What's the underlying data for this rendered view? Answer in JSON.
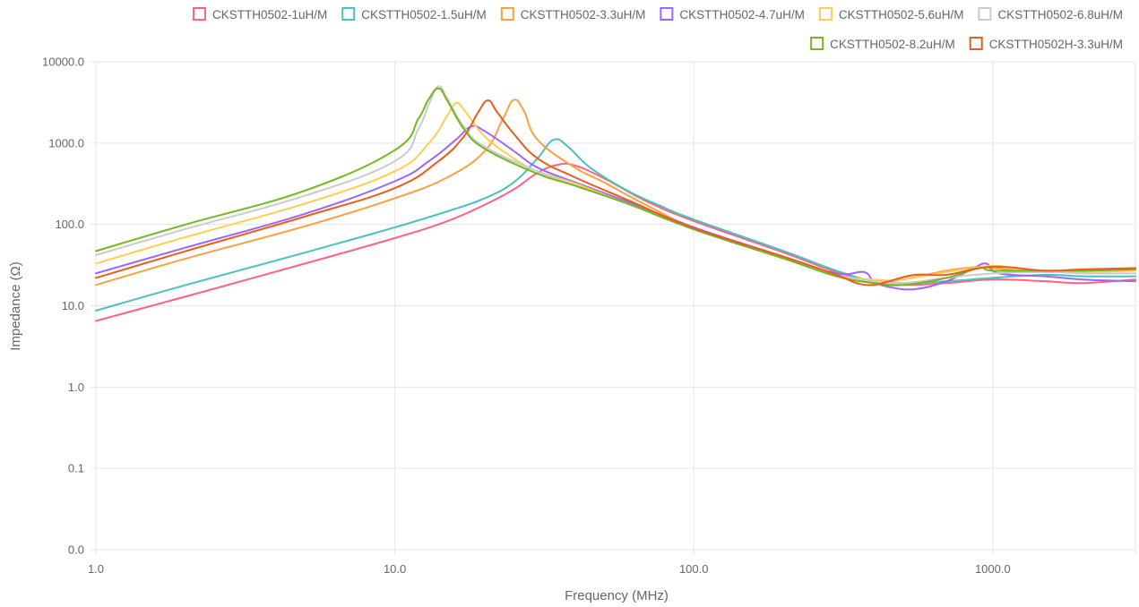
{
  "chart_data": {
    "type": "line",
    "xlabel": "Frequency (MHz)",
    "ylabel": "Impedance (Ω)",
    "xscale": "log",
    "yscale": "log",
    "xlim": [
      1,
      3000
    ],
    "ylim": [
      0.01,
      10000
    ],
    "x_ticks": [
      {
        "value": 1,
        "label": "1.0"
      },
      {
        "value": 10,
        "label": "10.0"
      },
      {
        "value": 100,
        "label": "100.0"
      },
      {
        "value": 1000,
        "label": "1000.0"
      }
    ],
    "y_ticks": [
      {
        "value": 0.01,
        "label": "0.0"
      },
      {
        "value": 0.1,
        "label": "0.1"
      },
      {
        "value": 1,
        "label": "1.0"
      },
      {
        "value": 10,
        "label": "10.0"
      },
      {
        "value": 100,
        "label": "100.0"
      },
      {
        "value": 1000,
        "label": "1000.0"
      },
      {
        "value": 10000,
        "label": "10000.0"
      }
    ],
    "grid": true,
    "legend_position": "top-right",
    "series": [
      {
        "name": "CKSTTH0502-1uH/M",
        "color": "#ff6384",
        "points": [
          [
            1,
            6.5
          ],
          [
            2,
            13
          ],
          [
            5,
            33
          ],
          [
            10,
            68
          ],
          [
            15,
            110
          ],
          [
            20,
            175
          ],
          [
            25,
            270
          ],
          [
            30,
            430
          ],
          [
            35,
            540
          ],
          [
            40,
            530
          ],
          [
            50,
            370
          ],
          [
            70,
            190
          ],
          [
            100,
            110
          ],
          [
            200,
            45
          ],
          [
            300,
            26
          ],
          [
            400,
            20
          ],
          [
            500,
            18
          ],
          [
            700,
            19
          ],
          [
            1000,
            21
          ],
          [
            1500,
            20
          ],
          [
            2000,
            19
          ],
          [
            3000,
            21
          ]
        ]
      },
      {
        "name": "CKSTTH0502-1.5uH/M",
        "color": "#4bc0c0",
        "points": [
          [
            1,
            8.7
          ],
          [
            2,
            18
          ],
          [
            5,
            45
          ],
          [
            10,
            92
          ],
          [
            15,
            145
          ],
          [
            20,
            210
          ],
          [
            25,
            330
          ],
          [
            30,
            650
          ],
          [
            34,
            1100
          ],
          [
            38,
            900
          ],
          [
            45,
            500
          ],
          [
            60,
            260
          ],
          [
            80,
            160
          ],
          [
            100,
            115
          ],
          [
            200,
            47
          ],
          [
            300,
            27
          ],
          [
            400,
            20
          ],
          [
            500,
            19
          ],
          [
            700,
            20
          ],
          [
            1000,
            22
          ],
          [
            1500,
            24
          ],
          [
            2000,
            23
          ],
          [
            3000,
            23
          ]
        ]
      },
      {
        "name": "CKSTTH0502-3.3uH/M",
        "color": "#ff9f40",
        "points": [
          [
            1,
            18
          ],
          [
            2,
            38
          ],
          [
            5,
            95
          ],
          [
            10,
            210
          ],
          [
            15,
            380
          ],
          [
            20,
            800
          ],
          [
            23,
            2000
          ],
          [
            25,
            3400
          ],
          [
            27,
            2500
          ],
          [
            30,
            1100
          ],
          [
            40,
            500
          ],
          [
            50,
            330
          ],
          [
            70,
            170
          ],
          [
            100,
            92
          ],
          [
            200,
            40
          ],
          [
            300,
            24
          ],
          [
            400,
            20
          ],
          [
            500,
            21
          ],
          [
            700,
            27
          ],
          [
            900,
            30
          ],
          [
            1000,
            29
          ],
          [
            1500,
            26
          ],
          [
            2000,
            27
          ],
          [
            3000,
            28
          ]
        ]
      },
      {
        "name": "CKSTTH0502-4.7uH/M",
        "color": "#9966ff",
        "points": [
          [
            1,
            25
          ],
          [
            2,
            52
          ],
          [
            5,
            135
          ],
          [
            10,
            340
          ],
          [
            13,
            600
          ],
          [
            16,
            1100
          ],
          [
            18,
            1600
          ],
          [
            20,
            1400
          ],
          [
            25,
            800
          ],
          [
            30,
            500
          ],
          [
            40,
            330
          ],
          [
            60,
            190
          ],
          [
            100,
            92
          ],
          [
            200,
            40
          ],
          [
            300,
            25
          ],
          [
            370,
            26
          ],
          [
            400,
            20
          ],
          [
            450,
            17
          ],
          [
            550,
            16
          ],
          [
            700,
            20
          ],
          [
            850,
            28
          ],
          [
            950,
            33
          ],
          [
            1050,
            25
          ],
          [
            1500,
            23
          ],
          [
            2000,
            21
          ],
          [
            3000,
            20
          ]
        ]
      },
      {
        "name": "CKSTTH0502-5.6uH/M",
        "color": "#ffcd56",
        "points": [
          [
            1,
            33
          ],
          [
            2,
            70
          ],
          [
            5,
            180
          ],
          [
            10,
            450
          ],
          [
            13,
            1000
          ],
          [
            15,
            2200
          ],
          [
            16,
            3100
          ],
          [
            17,
            2600
          ],
          [
            20,
            1200
          ],
          [
            25,
            650
          ],
          [
            30,
            450
          ],
          [
            40,
            320
          ],
          [
            60,
            180
          ],
          [
            100,
            88
          ],
          [
            200,
            38
          ],
          [
            300,
            24
          ],
          [
            400,
            21
          ],
          [
            500,
            21
          ],
          [
            700,
            26
          ],
          [
            1000,
            31
          ],
          [
            1200,
            28
          ],
          [
            1500,
            27
          ],
          [
            2000,
            26
          ],
          [
            3000,
            27
          ]
        ]
      },
      {
        "name": "CKSTTH0502-6.8uH/M",
        "color": "#c9cbcf",
        "points": [
          [
            1,
            42
          ],
          [
            2,
            88
          ],
          [
            5,
            225
          ],
          [
            10,
            600
          ],
          [
            12,
            1500
          ],
          [
            13,
            3000
          ],
          [
            14,
            5000
          ],
          [
            15,
            3500
          ],
          [
            17,
            1600
          ],
          [
            20,
            900
          ],
          [
            30,
            450
          ],
          [
            40,
            300
          ],
          [
            60,
            180
          ],
          [
            100,
            87
          ],
          [
            200,
            38
          ],
          [
            300,
            24
          ],
          [
            400,
            20
          ],
          [
            500,
            19
          ],
          [
            700,
            22
          ],
          [
            1000,
            25
          ],
          [
            1500,
            26
          ],
          [
            2000,
            25
          ],
          [
            3000,
            25
          ]
        ]
      },
      {
        "name": "CKSTTH0502-8.2uH/M",
        "color": "#72b81e",
        "points": [
          [
            1,
            47
          ],
          [
            2,
            100
          ],
          [
            5,
            260
          ],
          [
            10,
            820
          ],
          [
            12,
            2000
          ],
          [
            13,
            3500
          ],
          [
            14,
            4700
          ],
          [
            15,
            3300
          ],
          [
            17,
            1500
          ],
          [
            20,
            850
          ],
          [
            30,
            420
          ],
          [
            40,
            300
          ],
          [
            60,
            180
          ],
          [
            100,
            87
          ],
          [
            200,
            38
          ],
          [
            300,
            23
          ],
          [
            400,
            19
          ],
          [
            500,
            18
          ],
          [
            700,
            22
          ],
          [
            900,
            29
          ],
          [
            1000,
            27
          ],
          [
            1500,
            27
          ],
          [
            2000,
            27
          ],
          [
            3000,
            28
          ]
        ]
      },
      {
        "name": "CKSTTH0502H-3.3uH/M",
        "color": "#ea5d1b",
        "points": [
          [
            1,
            22
          ],
          [
            2,
            47
          ],
          [
            5,
            125
          ],
          [
            10,
            280
          ],
          [
            14,
            600
          ],
          [
            17,
            1200
          ],
          [
            19,
            2400
          ],
          [
            20.5,
            3350
          ],
          [
            22,
            2400
          ],
          [
            25,
            1300
          ],
          [
            30,
            650
          ],
          [
            40,
            380
          ],
          [
            60,
            200
          ],
          [
            100,
            90
          ],
          [
            200,
            40
          ],
          [
            300,
            24
          ],
          [
            350,
            19
          ],
          [
            400,
            18
          ],
          [
            450,
            20
          ],
          [
            550,
            24
          ],
          [
            700,
            24
          ],
          [
            900,
            29
          ],
          [
            1100,
            30
          ],
          [
            1500,
            27
          ],
          [
            2000,
            28
          ],
          [
            3000,
            29
          ]
        ]
      }
    ]
  }
}
